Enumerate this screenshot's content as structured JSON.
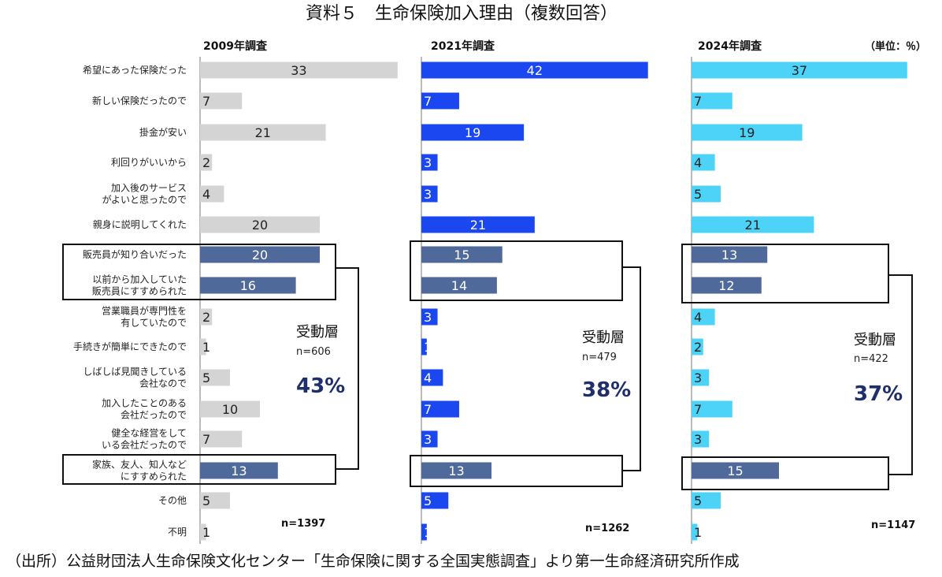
{
  "chart_data": {
    "type": "bar",
    "orientation": "horizontal",
    "title": "資料５　生命保険加入理由（複数回答）",
    "unit": "（単位：％）",
    "source": "（出所）公益財団法人生命保険文化センター「生命保険に関する全国実態調査」より第一生命経済研究所作成",
    "categories": [
      [
        "希望にあった保険だった"
      ],
      [
        "新しい保険だったので"
      ],
      [
        "掛金が安い"
      ],
      [
        "利回りがいいから"
      ],
      [
        "加入後のサービス",
        "がよいと思ったので"
      ],
      [
        "親身に説明してくれた"
      ],
      [
        "販売員が知り合いだった"
      ],
      [
        "以前から加入していた",
        "販売員にすすめられた"
      ],
      [
        "営業職員が専門性を",
        "有していたので"
      ],
      [
        "手続きが簡単にできたので"
      ],
      [
        "しばしば見聞きしている",
        "会社なので"
      ],
      [
        "加入したことのある",
        "会社だったので"
      ],
      [
        "健全な経営をして",
        "いる会社だったので"
      ],
      [
        "家族、友人、知人など",
        "にすすめられた"
      ],
      [
        "その他"
      ],
      [
        "不明"
      ]
    ],
    "passive_indices": [
      6,
      7,
      13
    ],
    "colors": {
      "passive": "#4f6a9a",
      "box": "#111111"
    },
    "series": [
      {
        "name": "2009年調査",
        "values": [
          33,
          7,
          21,
          2,
          4,
          20,
          20,
          16,
          2,
          1,
          5,
          10,
          7,
          13,
          5,
          1
        ],
        "color": "#d4d4d4",
        "label_color": "#222222",
        "n": "n=1397",
        "summary": {
          "label": "受動層",
          "n": "n=606",
          "pct": "43%"
        }
      },
      {
        "name": "2021年調査",
        "values": [
          42,
          7,
          19,
          3,
          3,
          21,
          15,
          14,
          3,
          1,
          4,
          7,
          3,
          13,
          5,
          1
        ],
        "color": "#1a47f0",
        "label_color": "#ffffff",
        "n": "n=1262",
        "summary": {
          "label": "受動層",
          "n": "n=479",
          "pct": "38%"
        }
      },
      {
        "name": "2024年調査",
        "values": [
          37,
          7,
          19,
          4,
          5,
          21,
          13,
          12,
          4,
          2,
          3,
          7,
          3,
          15,
          5,
          1
        ],
        "color": "#4dd3f7",
        "label_color": "#222222",
        "n": "n=1147",
        "summary": {
          "label": "受動層",
          "n": "n=422",
          "pct": "37%"
        }
      }
    ]
  }
}
